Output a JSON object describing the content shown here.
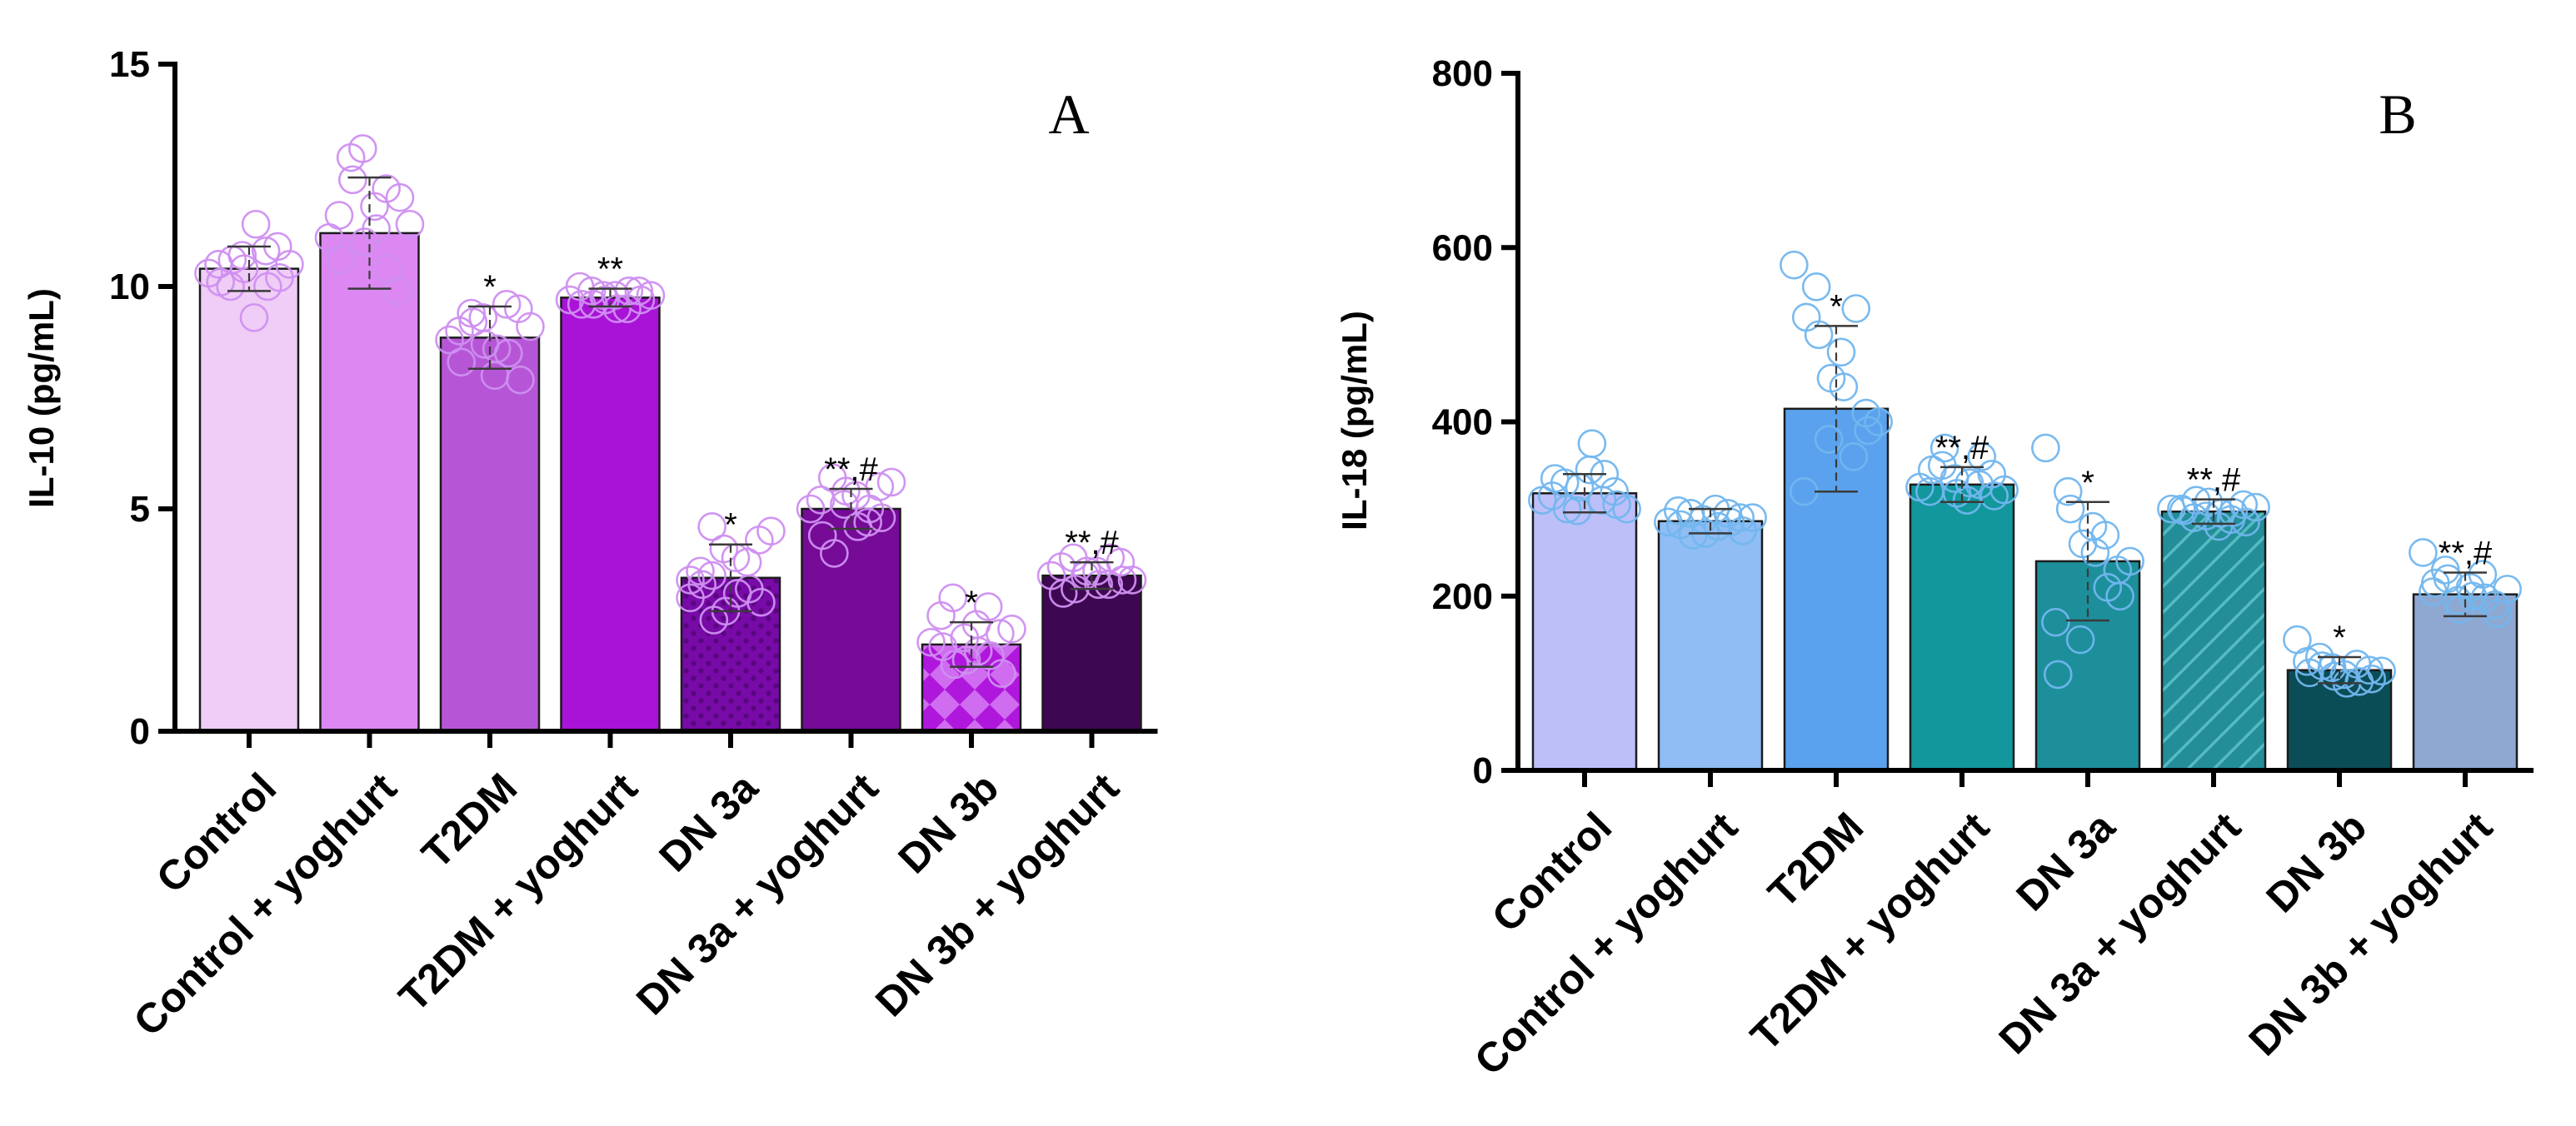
{
  "chart_data": [
    {
      "type": "bar",
      "panel_label": "A",
      "ylabel": "IL-10 (pg/mL)",
      "ylim": [
        0,
        15
      ],
      "yticks": [
        "0",
        "5",
        "10",
        "15"
      ],
      "categories": [
        "Control",
        "Control + yoghurt",
        "T2DM",
        "T2DM + yoghurt",
        "DN 3a",
        "DN 3a + yoghurt",
        "DN 3b",
        "DN 3b + yoghurt"
      ],
      "values": [
        10.4,
        11.2,
        8.85,
        9.75,
        3.45,
        5.0,
        1.95,
        3.5
      ],
      "errors": [
        0.5,
        1.25,
        0.7,
        0.2,
        0.75,
        0.45,
        0.5,
        0.3
      ],
      "annotations": [
        "",
        "",
        "*",
        "**",
        "*",
        "**,#",
        "*",
        "**,#"
      ],
      "bar_colors": [
        "#efcdf6",
        "#dd88f2",
        "#b656d6",
        "#a912d7",
        "#780ba7",
        "#750b97",
        "#b017dc",
        "#3e0751"
      ],
      "bar_patterns": [
        "none",
        "none",
        "none",
        "none",
        "dots",
        "none",
        "checker",
        "none"
      ],
      "point_color": "#cf8ff0",
      "points": [
        [
          10.3,
          10.0,
          10.6,
          9.3,
          11.4,
          10.9,
          10.2,
          10.5,
          10.1,
          10.7,
          10.4,
          10.8,
          10.0,
          10.5
        ],
        [
          11.1,
          12.9,
          12.4,
          11.8,
          11.3,
          9.9,
          12.0,
          11.6,
          10.6,
          13.1,
          11.0,
          12.2,
          10.4,
          11.4
        ],
        [
          8.8,
          9.4,
          9.2,
          8.0,
          8.6,
          9.5,
          7.9,
          9.0,
          8.3,
          9.3,
          8.7,
          9.6,
          8.5,
          9.1
        ],
        [
          9.7,
          9.9,
          9.6,
          9.8,
          9.5,
          9.9,
          9.7,
          10.0,
          9.6,
          9.8,
          9.7,
          9.5,
          9.9,
          9.8
        ],
        [
          3.4,
          4.6,
          2.5,
          3.9,
          3.1,
          4.3,
          2.9,
          3.6,
          3.3,
          4.1,
          2.7,
          3.8,
          3.2,
          4.5,
          3.0,
          3.5
        ],
        [
          5.0,
          5.7,
          4.0,
          5.3,
          4.6,
          5.5,
          4.8,
          5.2,
          4.4,
          5.1,
          5.4,
          4.7,
          5.0,
          5.6
        ],
        [
          2.0,
          3.0,
          1.5,
          2.4,
          1.8,
          2.2,
          1.3,
          2.6,
          1.9,
          2.1,
          1.6,
          2.8,
          1.7,
          2.3
        ],
        [
          3.5,
          3.9,
          3.2,
          3.6,
          3.3,
          3.8,
          3.4,
          3.7,
          3.1,
          3.5,
          3.6,
          3.3,
          3.9,
          3.4
        ]
      ]
    },
    {
      "type": "bar",
      "panel_label": "B",
      "ylabel": "IL-18 (pg/mL)",
      "ylim": [
        0,
        800
      ],
      "yticks": [
        "0",
        "200",
        "400",
        "600",
        "800"
      ],
      "categories": [
        "Control",
        "Control + yoghurt",
        "T2DM",
        "T2DM + yoghurt",
        "DN 3a",
        "DN 3a + yoghurt",
        "DN 3b",
        "DN 3b + yoghurt"
      ],
      "values": [
        318,
        286,
        415,
        328,
        240,
        297,
        115,
        202
      ],
      "errors": [
        22,
        14,
        95,
        20,
        68,
        14,
        15,
        25
      ],
      "annotations": [
        "",
        "",
        "*",
        "**,#",
        "*",
        "**,#",
        "*",
        "**,#"
      ],
      "bar_colors": [
        "#bdbff9",
        "#8fbdf4",
        "#5ba2ee",
        "#12979c",
        "#1c8f9b",
        "#238e98",
        "#0b4d57",
        "#8fa8d2"
      ],
      "bar_patterns": [
        "none",
        "none",
        "none",
        "none",
        "none",
        "hatch",
        "none",
        "none"
      ],
      "point_color": "#72b6ee",
      "points": [
        [
          310,
          330,
          300,
          345,
          375,
          320,
          305,
          315,
          335,
          298,
          325,
          310,
          340,
          300
        ],
        [
          285,
          295,
          270,
          300,
          280,
          290,
          275,
          298,
          282,
          288,
          272,
          295,
          285,
          290
        ],
        [
          580,
          555,
          500,
          480,
          440,
          410,
          390,
          320,
          520,
          380,
          450,
          360,
          530,
          400
        ],
        [
          325,
          350,
          370,
          310,
          330,
          340,
          315,
          320,
          345,
          335,
          318,
          328,
          360,
          322
        ],
        [
          370,
          320,
          300,
          280,
          250,
          230,
          200,
          170,
          110,
          150,
          260,
          270,
          210,
          240
        ],
        [
          300,
          290,
          310,
          280,
          295,
          305,
          285,
          300,
          298,
          292,
          308,
          288,
          296,
          302
        ],
        [
          150,
          130,
          120,
          110,
          100,
          115,
          105,
          125,
          112,
          118,
          108,
          122,
          102,
          114
        ],
        [
          250,
          230,
          220,
          210,
          200,
          190,
          180,
          205,
          215,
          195,
          185,
          225,
          198,
          208
        ]
      ]
    }
  ]
}
